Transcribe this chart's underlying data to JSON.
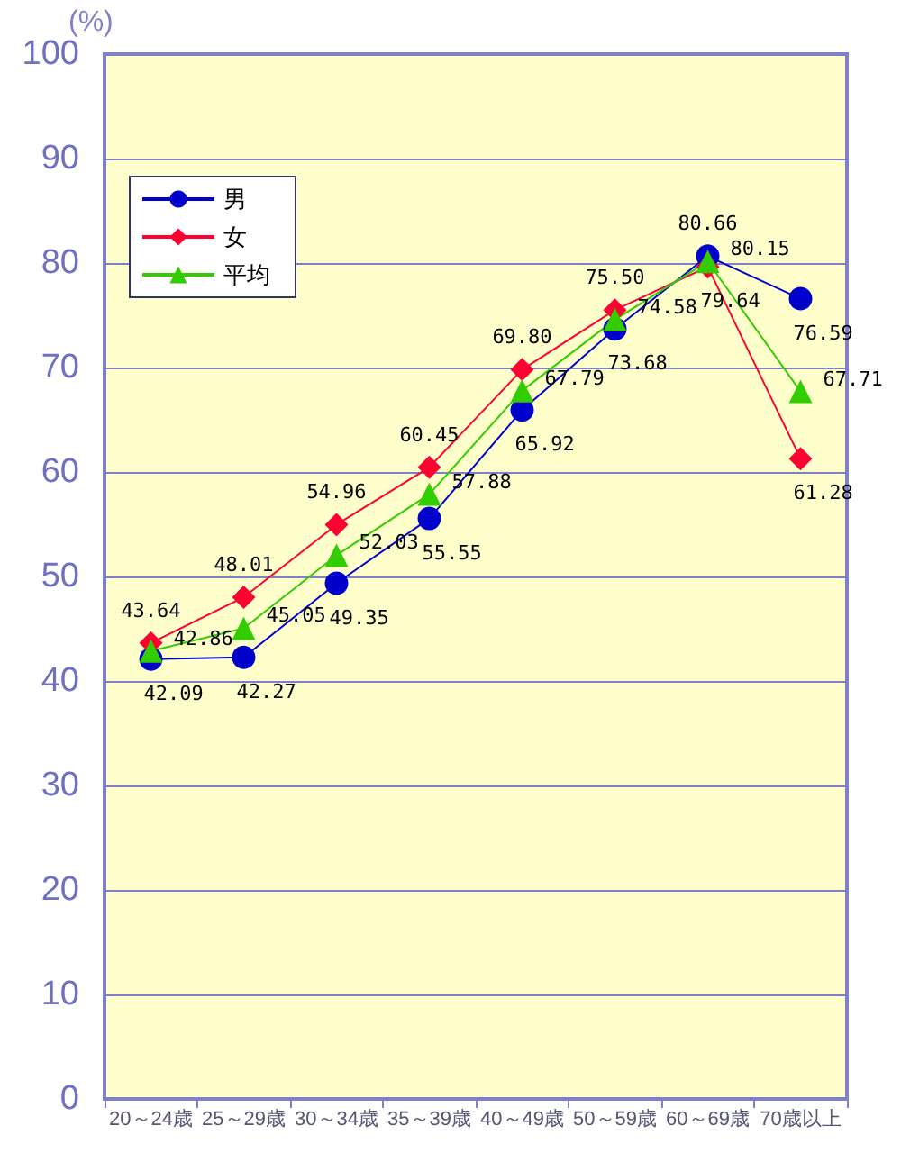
{
  "chart_data": {
    "type": "line",
    "ylabel": "(%)",
    "categories": [
      "20～24歳",
      "25～29歳",
      "30～34歳",
      "35～39歳",
      "40～49歳",
      "50～59歳",
      "60～69歳",
      "70歳以上"
    ],
    "series": [
      {
        "name": "男",
        "color": "#0000cc",
        "marker": "circle",
        "values": [
          42.09,
          42.27,
          49.35,
          55.55,
          65.92,
          73.68,
          80.66,
          76.59
        ],
        "value_labels": [
          "42.09",
          "42.27",
          "49.35",
          "55.55",
          "65.92",
          "73.68",
          "80.66",
          "76.59"
        ]
      },
      {
        "name": "女",
        "color": "#ff0033",
        "marker": "diamond",
        "values": [
          43.64,
          48.01,
          54.96,
          60.45,
          69.8,
          75.5,
          79.64,
          61.28
        ],
        "value_labels": [
          "43.64",
          "48.01",
          "54.96",
          "60.45",
          "69.80",
          "75.50",
          "79.64",
          "61.28"
        ]
      },
      {
        "name": "平均",
        "color": "#33cc00",
        "marker": "triangle",
        "values": [
          42.86,
          45.05,
          52.03,
          57.88,
          67.79,
          74.58,
          80.15,
          67.71
        ],
        "value_labels": [
          "42.86",
          "45.05",
          "52.03",
          "57.88",
          "67.79",
          "74.58",
          "80.15",
          "67.71"
        ]
      }
    ],
    "ylim": [
      0,
      100
    ],
    "yticks": [
      0,
      10,
      20,
      30,
      40,
      50,
      60,
      70,
      80,
      90,
      100
    ],
    "grid": "y",
    "legend": "top left"
  }
}
